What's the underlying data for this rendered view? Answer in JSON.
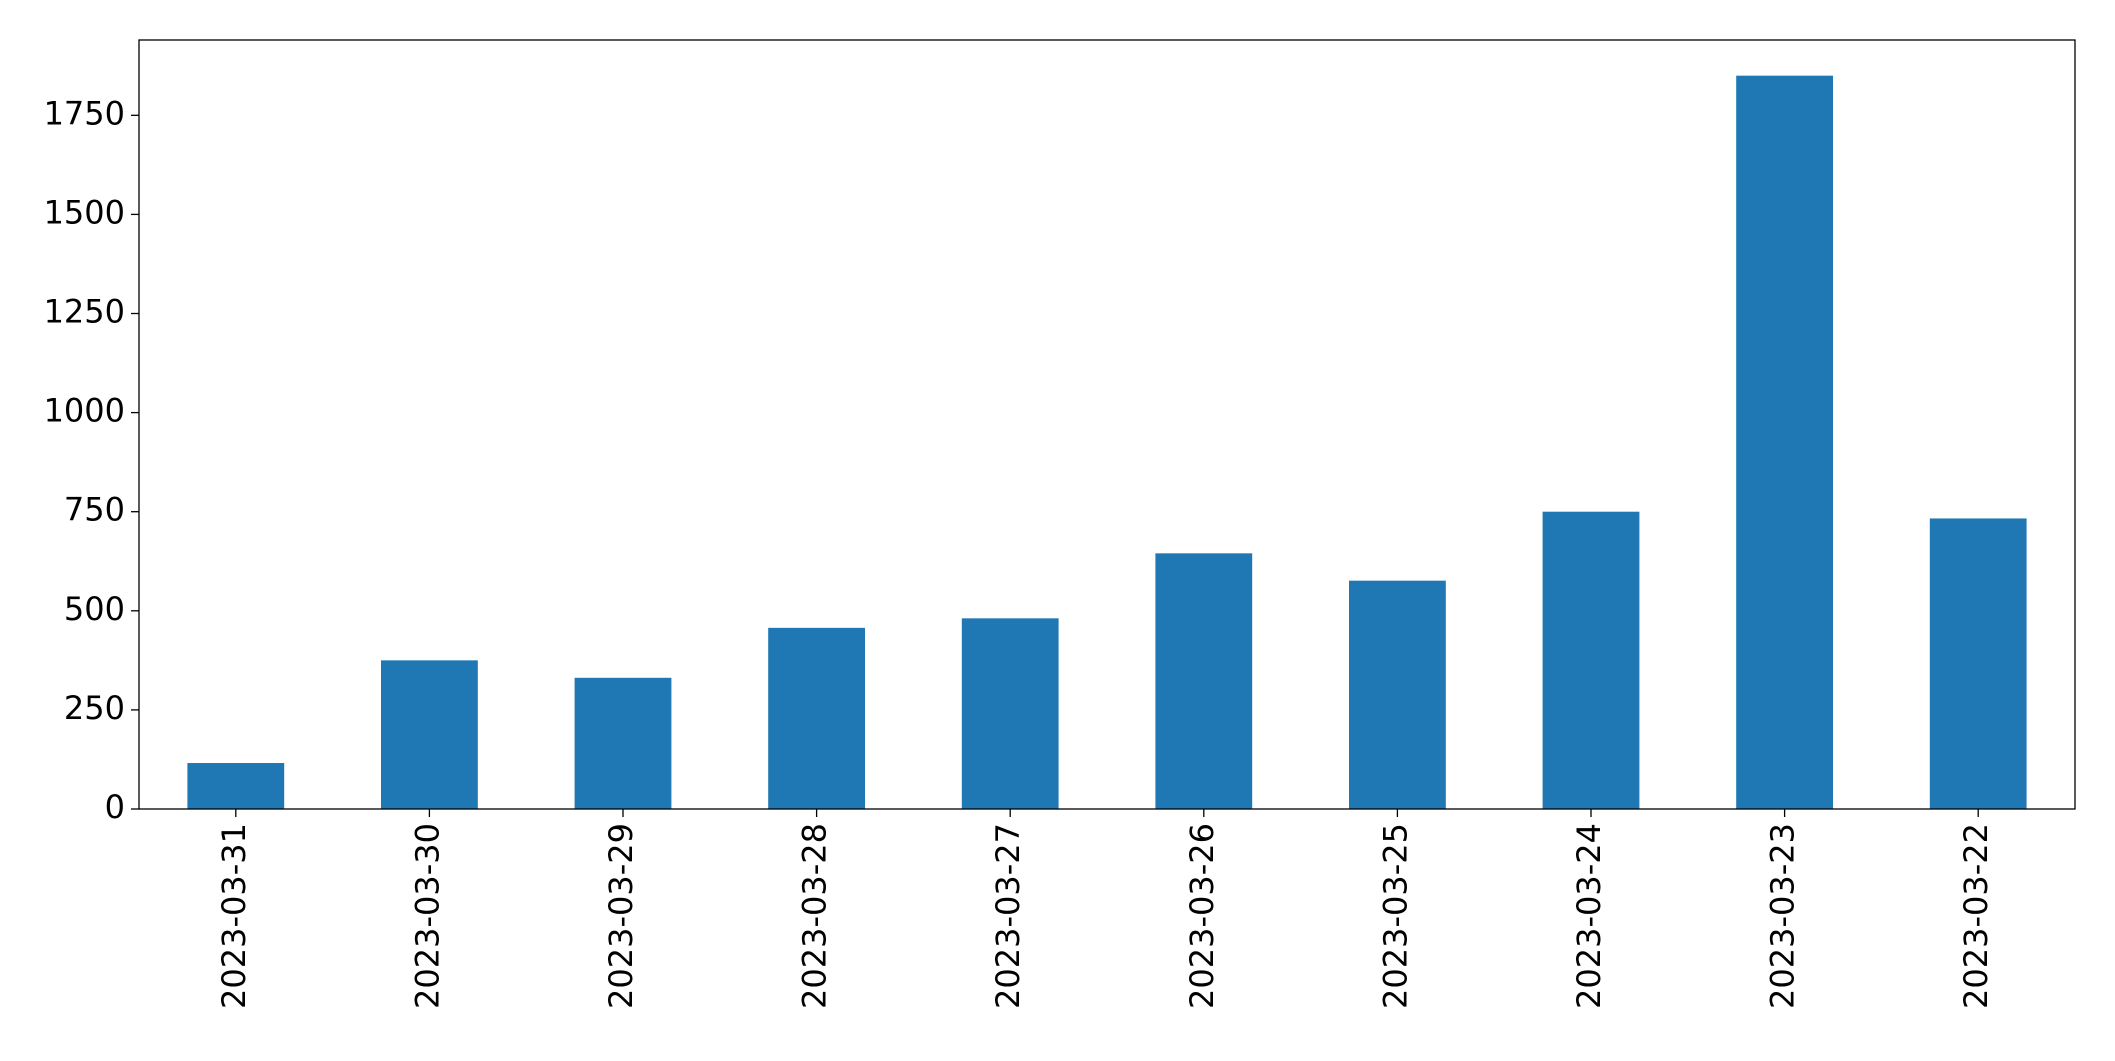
{
  "chart_data": {
    "type": "bar",
    "categories": [
      "2023-03-31",
      "2023-03-30",
      "2023-03-29",
      "2023-03-28",
      "2023-03-27",
      "2023-03-26",
      "2023-03-25",
      "2023-03-24",
      "2023-03-23",
      "2023-03-22"
    ],
    "values": [
      116,
      375,
      331,
      457,
      481,
      645,
      576,
      750,
      1850,
      733
    ],
    "color": "#1f77b4",
    "ylim": [
      0,
      1940
    ],
    "yticks": [
      0,
      250,
      500,
      750,
      1000,
      1250,
      1500,
      1750
    ],
    "grid": false
  }
}
